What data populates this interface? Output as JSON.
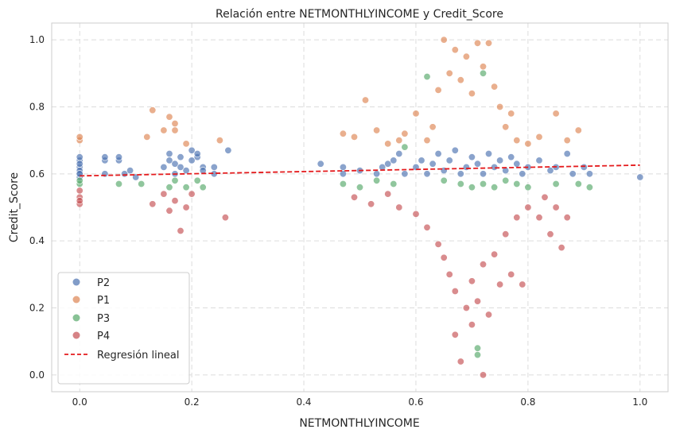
{
  "chart_data": {
    "type": "scatter",
    "title": "Relación entre NETMONTHLYINCOME y Credit_Score",
    "xlabel": "NETMONTHLYINCOME",
    "ylabel": "Credit_Score",
    "xlim": [
      -0.05,
      1.05
    ],
    "ylim": [
      -0.05,
      1.05
    ],
    "xticks": [
      "0.0",
      "0.2",
      "0.4",
      "0.6",
      "0.8",
      "1.0"
    ],
    "yticks": [
      "0.0",
      "0.2",
      "0.4",
      "0.6",
      "0.8",
      "1.0"
    ],
    "grid": true,
    "grid_style": "dashed",
    "legend_position": "lower-left",
    "series": [
      {
        "name": "P2",
        "color": "#4c72b0",
        "points": [
          [
            0.0,
            0.6
          ],
          [
            0.0,
            0.62
          ],
          [
            0.0,
            0.64
          ],
          [
            0.0,
            0.65
          ],
          [
            0.0,
            0.61
          ],
          [
            0.0,
            0.63
          ],
          [
            0.0,
            0.59
          ],
          [
            0.0,
            0.6
          ],
          [
            0.045,
            0.64
          ],
          [
            0.045,
            0.65
          ],
          [
            0.045,
            0.6
          ],
          [
            0.07,
            0.64
          ],
          [
            0.07,
            0.65
          ],
          [
            0.08,
            0.6
          ],
          [
            0.09,
            0.61
          ],
          [
            0.1,
            0.59
          ],
          [
            0.15,
            0.62
          ],
          [
            0.16,
            0.64
          ],
          [
            0.16,
            0.66
          ],
          [
            0.17,
            0.6
          ],
          [
            0.17,
            0.63
          ],
          [
            0.18,
            0.65
          ],
          [
            0.18,
            0.62
          ],
          [
            0.19,
            0.61
          ],
          [
            0.2,
            0.67
          ],
          [
            0.2,
            0.64
          ],
          [
            0.21,
            0.65
          ],
          [
            0.21,
            0.66
          ],
          [
            0.22,
            0.62
          ],
          [
            0.22,
            0.61
          ],
          [
            0.24,
            0.6
          ],
          [
            0.24,
            0.62
          ],
          [
            0.265,
            0.67
          ],
          [
            0.43,
            0.63
          ],
          [
            0.47,
            0.6
          ],
          [
            0.47,
            0.62
          ],
          [
            0.5,
            0.61
          ],
          [
            0.53,
            0.6
          ],
          [
            0.54,
            0.62
          ],
          [
            0.55,
            0.63
          ],
          [
            0.56,
            0.64
          ],
          [
            0.57,
            0.66
          ],
          [
            0.58,
            0.6
          ],
          [
            0.6,
            0.62
          ],
          [
            0.61,
            0.64
          ],
          [
            0.62,
            0.6
          ],
          [
            0.63,
            0.63
          ],
          [
            0.64,
            0.66
          ],
          [
            0.65,
            0.61
          ],
          [
            0.66,
            0.64
          ],
          [
            0.67,
            0.67
          ],
          [
            0.68,
            0.6
          ],
          [
            0.69,
            0.62
          ],
          [
            0.7,
            0.65
          ],
          [
            0.71,
            0.63
          ],
          [
            0.72,
            0.6
          ],
          [
            0.73,
            0.66
          ],
          [
            0.74,
            0.62
          ],
          [
            0.75,
            0.64
          ],
          [
            0.76,
            0.61
          ],
          [
            0.77,
            0.65
          ],
          [
            0.78,
            0.63
          ],
          [
            0.79,
            0.6
          ],
          [
            0.8,
            0.62
          ],
          [
            0.82,
            0.64
          ],
          [
            0.84,
            0.61
          ],
          [
            0.85,
            0.62
          ],
          [
            0.87,
            0.66
          ],
          [
            0.88,
            0.6
          ],
          [
            0.9,
            0.62
          ],
          [
            0.91,
            0.6
          ],
          [
            1.0,
            0.59
          ]
        ]
      },
      {
        "name": "P1",
        "color": "#dd8452",
        "points": [
          [
            0.0,
            0.7
          ],
          [
            0.0,
            0.71
          ],
          [
            0.12,
            0.71
          ],
          [
            0.13,
            0.79
          ],
          [
            0.15,
            0.73
          ],
          [
            0.16,
            0.77
          ],
          [
            0.17,
            0.75
          ],
          [
            0.17,
            0.73
          ],
          [
            0.19,
            0.69
          ],
          [
            0.25,
            0.7
          ],
          [
            0.47,
            0.72
          ],
          [
            0.49,
            0.71
          ],
          [
            0.51,
            0.82
          ],
          [
            0.53,
            0.73
          ],
          [
            0.55,
            0.69
          ],
          [
            0.57,
            0.7
          ],
          [
            0.58,
            0.72
          ],
          [
            0.6,
            0.78
          ],
          [
            0.62,
            0.7
          ],
          [
            0.63,
            0.74
          ],
          [
            0.64,
            0.85
          ],
          [
            0.65,
            1.0
          ],
          [
            0.66,
            0.9
          ],
          [
            0.67,
            0.97
          ],
          [
            0.68,
            0.88
          ],
          [
            0.69,
            0.95
          ],
          [
            0.7,
            0.84
          ],
          [
            0.71,
            0.99
          ],
          [
            0.72,
            0.92
          ],
          [
            0.73,
            0.99
          ],
          [
            0.74,
            0.86
          ],
          [
            0.75,
            0.8
          ],
          [
            0.76,
            0.74
          ],
          [
            0.77,
            0.78
          ],
          [
            0.78,
            0.7
          ],
          [
            0.8,
            0.69
          ],
          [
            0.82,
            0.71
          ],
          [
            0.85,
            0.78
          ],
          [
            0.87,
            0.7
          ],
          [
            0.89,
            0.73
          ]
        ]
      },
      {
        "name": "P3",
        "color": "#55a868",
        "points": [
          [
            0.0,
            0.57
          ],
          [
            0.0,
            0.58
          ],
          [
            0.07,
            0.57
          ],
          [
            0.11,
            0.57
          ],
          [
            0.16,
            0.56
          ],
          [
            0.17,
            0.58
          ],
          [
            0.19,
            0.56
          ],
          [
            0.21,
            0.58
          ],
          [
            0.22,
            0.56
          ],
          [
            0.47,
            0.57
          ],
          [
            0.5,
            0.56
          ],
          [
            0.53,
            0.58
          ],
          [
            0.56,
            0.57
          ],
          [
            0.58,
            0.68
          ],
          [
            0.62,
            0.89
          ],
          [
            0.65,
            0.58
          ],
          [
            0.68,
            0.57
          ],
          [
            0.7,
            0.56
          ],
          [
            0.72,
            0.57
          ],
          [
            0.72,
            0.9
          ],
          [
            0.74,
            0.56
          ],
          [
            0.76,
            0.58
          ],
          [
            0.78,
            0.57
          ],
          [
            0.8,
            0.56
          ],
          [
            0.85,
            0.57
          ],
          [
            0.89,
            0.57
          ],
          [
            0.91,
            0.56
          ],
          [
            0.71,
            0.08
          ],
          [
            0.71,
            0.06
          ]
        ]
      },
      {
        "name": "P4",
        "color": "#c44e52",
        "points": [
          [
            0.0,
            0.55
          ],
          [
            0.0,
            0.53
          ],
          [
            0.0,
            0.51
          ],
          [
            0.0,
            0.52
          ],
          [
            0.13,
            0.51
          ],
          [
            0.15,
            0.54
          ],
          [
            0.16,
            0.49
          ],
          [
            0.17,
            0.52
          ],
          [
            0.18,
            0.43
          ],
          [
            0.19,
            0.5
          ],
          [
            0.2,
            0.54
          ],
          [
            0.26,
            0.47
          ],
          [
            0.49,
            0.53
          ],
          [
            0.52,
            0.51
          ],
          [
            0.55,
            0.54
          ],
          [
            0.57,
            0.5
          ],
          [
            0.6,
            0.48
          ],
          [
            0.62,
            0.44
          ],
          [
            0.64,
            0.39
          ],
          [
            0.65,
            0.35
          ],
          [
            0.66,
            0.3
          ],
          [
            0.67,
            0.25
          ],
          [
            0.67,
            0.12
          ],
          [
            0.68,
            0.04
          ],
          [
            0.69,
            0.2
          ],
          [
            0.7,
            0.15
          ],
          [
            0.7,
            0.28
          ],
          [
            0.71,
            0.22
          ],
          [
            0.72,
            0.33
          ],
          [
            0.72,
            0.0
          ],
          [
            0.73,
            0.18
          ],
          [
            0.74,
            0.36
          ],
          [
            0.75,
            0.27
          ],
          [
            0.76,
            0.42
          ],
          [
            0.77,
            0.3
          ],
          [
            0.78,
            0.47
          ],
          [
            0.79,
            0.27
          ],
          [
            0.8,
            0.5
          ],
          [
            0.82,
            0.47
          ],
          [
            0.83,
            0.53
          ],
          [
            0.84,
            0.42
          ],
          [
            0.85,
            0.5
          ],
          [
            0.86,
            0.38
          ],
          [
            0.87,
            0.47
          ]
        ]
      }
    ],
    "regression": {
      "name": "Regresión lineal",
      "color": "#e41a1c",
      "x": [
        0.0,
        1.0
      ],
      "y": [
        0.594,
        0.626
      ]
    }
  }
}
